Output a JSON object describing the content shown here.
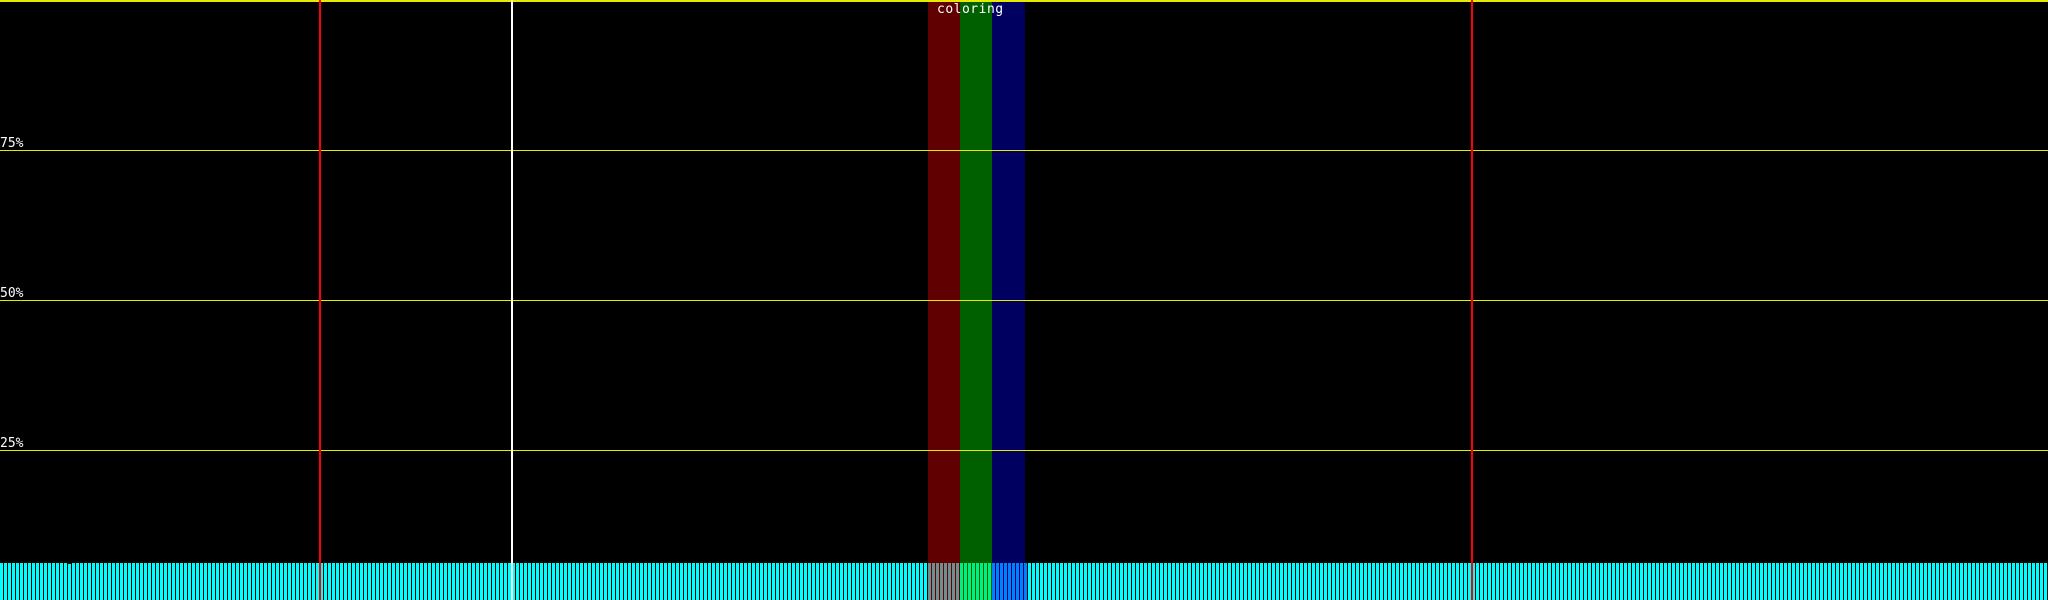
{
  "title": "coloring",
  "gridlines": [
    {
      "label": "75%",
      "value": 75
    },
    {
      "label": "50%",
      "value": 50
    },
    {
      "label": "25%",
      "value": 25
    }
  ],
  "colors": {
    "background": "#000000",
    "gridline": "#e8e800",
    "bar": "#00ffff",
    "marker_red": "#ff0000",
    "marker_white": "#ffffff",
    "band_red": "#600000",
    "band_green": "#006000",
    "band_blue": "#000060",
    "bar_in_red": "#6f8f8f",
    "bar_in_green": "#00f080",
    "bar_in_blue": "#0080ff"
  },
  "bars": [
    6.2,
    6.2,
    6.2,
    6.2,
    6.2,
    6.2,
    6.2,
    6.2,
    6.2,
    6.2,
    6.2,
    6.2,
    6.2,
    6.2,
    6.2,
    6.2,
    6.2,
    6.0,
    6.2,
    6.2,
    6.2,
    6.2,
    6.2,
    6.2,
    6.2,
    6.2,
    6.2,
    6.2,
    6.2,
    6.2,
    6.2,
    6.2,
    6.2,
    6.2,
    6.2,
    6.2,
    6.2,
    6.2,
    6.2,
    6.2,
    6.2,
    6.2,
    6.2,
    6.2,
    6.2,
    6.2,
    6.2,
    6.2,
    6.2,
    6.2,
    6.2,
    6.2,
    6.2,
    6.2,
    6.2,
    6.2,
    6.2,
    6.2,
    6.2,
    6.2,
    6.2,
    6.2,
    6.2,
    6.2,
    6.2,
    6.2,
    6.2,
    6.2,
    6.2,
    6.2,
    6.2,
    6.2,
    6.2,
    6.2,
    6.2,
    6.2,
    6.2,
    6.2,
    6.2,
    6.2,
    6.2,
    6.2,
    6.2,
    6.2,
    6.2,
    6.2,
    6.2,
    6.2,
    6.2,
    6.2,
    6.2,
    6.2,
    6.2,
    6.2,
    6.2,
    6.2,
    6.2,
    6.2,
    6.2,
    6.2,
    6.2,
    6.2,
    6.2,
    6.2,
    6.2,
    6.2,
    6.2,
    6.2,
    6.2,
    6.2,
    6.2,
    6.2,
    6.2,
    6.2,
    6.2,
    6.2,
    6.2,
    6.2,
    6.2,
    6.2,
    6.2,
    6.2,
    6.2,
    6.2,
    6.2,
    6.2,
    6.2,
    6.2,
    6.2,
    6.2,
    6.2,
    6.2,
    6.2,
    6.2,
    6.2,
    6.2,
    6.2,
    6.2,
    6.2,
    6.2,
    6.2,
    6.2,
    6.2,
    6.2,
    6.2,
    6.2,
    6.2,
    6.2,
    6.2,
    6.2,
    6.2,
    6.2,
    6.2,
    6.2,
    6.2,
    6.2,
    6.2,
    6.2,
    6.2,
    6.2,
    6.2,
    6.2,
    6.2,
    6.2,
    6.2,
    6.2,
    6.2,
    6.2,
    6.2,
    6.2,
    6.2,
    6.2,
    6.2,
    6.2,
    6.2,
    6.2,
    6.2,
    6.2,
    6.2,
    6.2,
    6.2,
    6.2,
    6.2,
    6.2,
    6.2,
    6.2,
    6.2,
    6.2,
    6.2,
    6.2,
    6.2,
    6.2,
    6.2,
    6.2,
    6.2,
    6.2,
    6.2,
    6.2,
    6.2,
    6.2,
    6.2,
    6.2,
    6.2,
    6.2,
    6.2,
    6.2,
    6.2,
    6.2,
    6.2,
    6.2,
    6.2,
    6.2,
    6.2,
    6.2,
    6.2,
    6.2,
    6.2,
    6.2,
    6.2,
    6.2,
    6.2,
    6.2,
    6.2,
    6.2,
    6.2,
    6.2,
    6.2,
    6.2,
    6.2,
    6.2,
    6.2,
    6.2,
    6.2,
    6.2,
    6.2,
    6.2,
    6.2,
    6.2,
    6.2,
    6.2,
    6.2,
    6.2,
    6.2,
    6.2,
    6.2,
    6.2,
    6.2,
    6.2,
    6.2,
    6.2,
    6.2,
    6.2,
    6.2,
    6.2,
    6.2,
    6.2,
    6.2,
    6.2,
    6.2,
    6.2,
    6.2,
    6.2,
    6.2,
    6.2,
    6.2,
    6.2,
    6.2,
    6.2,
    6.2,
    6.2,
    6.2,
    6.2,
    6.2,
    6.2,
    6.2,
    6.2,
    6.2,
    6.2,
    6.2,
    6.2,
    6.2,
    6.2,
    6.2,
    6.2,
    6.2,
    6.2,
    6.2,
    6.2,
    6.2,
    6.2,
    6.2,
    6.2,
    6.2,
    6.2,
    6.2,
    6.2,
    6.2,
    6.2,
    6.2,
    6.2,
    6.2,
    6.2,
    6.2,
    6.2,
    6.2,
    6.2,
    6.2,
    6.2,
    6.2,
    6.2,
    6.2,
    6.2,
    6.2,
    6.2,
    6.2,
    6.2,
    6.2,
    6.2,
    6.2,
    6.2,
    6.2,
    6.2,
    6.2,
    6.2,
    6.2,
    6.2,
    6.2,
    6.2,
    6.2,
    6.2,
    6.2,
    6.2,
    6.2,
    6.2,
    6.2,
    6.2,
    6.2,
    6.2,
    6.2,
    6.2,
    6.2,
    6.2,
    6.2,
    6.2,
    6.2,
    6.2,
    6.2,
    6.2,
    6.2,
    6.2,
    6.2,
    6.2,
    6.2,
    6.2,
    6.2,
    6.2,
    6.2,
    6.2,
    6.2,
    6.2,
    6.2,
    6.2,
    6.2,
    6.2,
    6.2,
    6.2,
    6.2,
    6.2,
    6.2,
    6.2,
    6.2,
    6.2,
    6.2,
    6.2,
    6.2,
    6.2,
    6.2,
    6.2,
    6.2,
    6.2,
    6.2,
    6.2,
    6.2,
    6.2,
    6.2,
    6.2,
    6.2,
    6.2,
    6.2,
    6.2,
    6.2,
    6.2,
    6.2,
    6.2,
    6.2,
    6.2,
    6.2,
    6.2,
    6.2,
    6.2,
    6.2,
    6.2,
    6.2,
    6.2,
    6.2,
    6.2,
    6.2,
    6.2,
    6.2,
    6.2,
    6.2,
    6.2,
    6.2,
    6.2,
    6.2,
    6.2,
    6.2,
    6.2,
    6.2,
    6.2,
    6.2,
    6.2,
    6.2,
    6.2,
    6.2,
    6.2,
    6.2,
    6.2,
    6.2,
    6.2,
    6.2,
    6.2,
    6.2,
    6.2,
    6.2,
    6.2,
    6.2,
    6.2,
    6.2,
    6.2,
    6.2,
    6.2,
    6.2,
    6.2,
    6.2,
    6.2,
    6.2,
    6.2,
    6.2,
    6.2,
    6.2,
    6.2,
    6.2,
    6.2,
    6.2,
    6.2,
    6.2,
    6.2,
    6.2,
    6.2,
    6.2,
    6.2,
    6.2,
    6.2,
    6.2,
    6.2,
    6.2,
    6.2,
    6.2,
    6.2,
    6.2,
    6.2,
    6.2,
    6.2,
    6.2,
    6.2,
    6.2,
    6.2,
    6.2,
    6.2,
    6.2,
    6.2,
    6.2,
    6.2,
    6.2,
    6.2,
    6.2,
    6.2,
    6.2,
    6.2,
    6.2,
    6.2,
    6.2,
    6.2,
    6.2,
    6.2,
    6.2,
    6.2,
    6.2,
    6.2,
    6.2,
    6.2,
    6.2,
    6.2,
    6.2,
    6.2,
    6.2,
    6.2,
    6.2,
    6.2,
    6.2,
    6.2
  ]
}
